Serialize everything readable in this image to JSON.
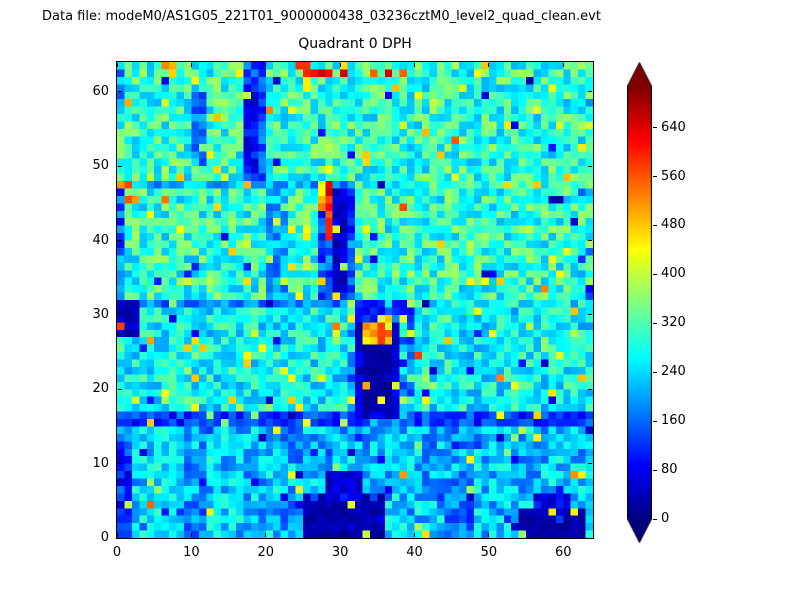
{
  "chart_data": {
    "type": "heatmap",
    "suptitle": "Data file: modeM0/AS1G05_221T01_9000000438_03236cztM0_level2_quad_clean.evt",
    "title": "Quadrant 0 DPH",
    "grid_size": 64,
    "xlim": [
      0,
      64
    ],
    "ylim": [
      0,
      64
    ],
    "x_ticks": [
      0,
      10,
      20,
      30,
      40,
      50,
      60
    ],
    "y_ticks": [
      0,
      10,
      20,
      30,
      40,
      50,
      60
    ],
    "colormap": "jet",
    "value_range": [
      0,
      708
    ],
    "colorbar": {
      "ticks": [
        0,
        80,
        160,
        240,
        320,
        400,
        480,
        560,
        640
      ],
      "extend": "both"
    },
    "generation": {
      "seed": 20,
      "base": {
        "mean": 295,
        "spread": 85
      },
      "regions": [
        {
          "x": [
            0,
            64
          ],
          "y": [
            0,
            16
          ],
          "mean": 225,
          "spread": 75
        },
        {
          "x": [
            3,
            9
          ],
          "y": [
            0,
            15
          ],
          "mean": 255,
          "spread": 55,
          "prob": 0.65
        },
        {
          "x": [
            9,
            12
          ],
          "y": [
            0,
            15
          ],
          "mean": 170,
          "spread": 50,
          "prob": 0.7
        },
        {
          "x": [
            12,
            17
          ],
          "y": [
            0,
            15
          ],
          "mean": 255,
          "spread": 55,
          "prob": 0.6
        },
        {
          "x": [
            22,
            25
          ],
          "y": [
            0,
            15
          ],
          "mean": 180,
          "spread": 55,
          "prob": 0.6
        },
        {
          "x": [
            36,
            41
          ],
          "y": [
            0,
            15
          ],
          "mean": 250,
          "spread": 55,
          "prob": 0.6
        },
        {
          "x": [
            43,
            47
          ],
          "y": [
            0,
            15
          ],
          "mean": 175,
          "spread": 55,
          "prob": 0.6
        },
        {
          "x": [
            47,
            48
          ],
          "y": [
            0,
            16
          ],
          "mean": 160,
          "spread": 55
        },
        {
          "x": [
            48,
            54
          ],
          "y": [
            0,
            15
          ],
          "mean": 245,
          "spread": 55,
          "prob": 0.6
        },
        {
          "x": [
            0,
            64
          ],
          "y": [
            16,
            32
          ],
          "mean": 265,
          "spread": 75
        },
        {
          "x": [
            0,
            64
          ],
          "y": [
            15,
            17
          ],
          "mean": 125,
          "spread": 55
        },
        {
          "x": [
            0,
            34
          ],
          "y": [
            31,
            32
          ],
          "mean": 175,
          "spread": 60
        },
        {
          "x": [
            0,
            28
          ],
          "y": [
            47,
            48
          ],
          "mean": 205,
          "spread": 60
        },
        {
          "x": [
            0,
            2
          ],
          "y": [
            0,
            13
          ],
          "mean": 120,
          "spread": 70
        },
        {
          "x": [
            0,
            3
          ],
          "y": [
            27,
            32
          ],
          "mean": 40,
          "spread": 30
        },
        {
          "x": [
            0,
            1
          ],
          "y": [
            32,
            48
          ],
          "mean": 160,
          "spread": 80
        },
        {
          "x": [
            17,
            20
          ],
          "y": [
            48,
            64
          ],
          "mean": 150,
          "spread": 60
        },
        {
          "x": [
            17,
            19
          ],
          "y": [
            50,
            61
          ],
          "mean": 95,
          "spread": 45
        },
        {
          "x": [
            10,
            12
          ],
          "y": [
            50,
            60
          ],
          "mean": 175,
          "spread": 55,
          "prob": 0.8
        },
        {
          "x": [
            20,
            23
          ],
          "y": [
            32,
            47
          ],
          "mean": 205,
          "spread": 65,
          "prob": 0.85
        },
        {
          "x": [
            27,
            32
          ],
          "y": [
            32,
            48
          ],
          "mean": 150,
          "spread": 70
        },
        {
          "x": [
            29,
            31
          ],
          "y": [
            33,
            47
          ],
          "mean": 55,
          "spread": 35
        },
        {
          "x": [
            28,
            29
          ],
          "y": [
            40,
            48
          ],
          "mean": 600,
          "spread": 55
        },
        {
          "x": [
            27,
            28
          ],
          "y": [
            44,
            48
          ],
          "mean": 480,
          "spread": 60
        },
        {
          "x": [
            31,
            40
          ],
          "y": [
            15,
            32
          ],
          "mean": 170,
          "spread": 85,
          "prob": 0.8
        },
        {
          "x": [
            32,
            38
          ],
          "y": [
            16,
            29
          ],
          "mean": 55,
          "spread": 40
        },
        {
          "x": [
            33,
            37
          ],
          "y": [
            18,
            27
          ],
          "mean": 22,
          "spread": 12
        },
        {
          "x": [
            33,
            37
          ],
          "y": [
            26,
            30
          ],
          "mean": 500,
          "spread": 90
        },
        {
          "x": [
            33,
            35
          ],
          "y": [
            29,
            32
          ],
          "mean": 90,
          "spread": 50
        },
        {
          "x": [
            41,
            43
          ],
          "y": [
            6,
            16
          ],
          "mean": 185,
          "spread": 60,
          "prob": 0.7
        },
        {
          "x": [
            25,
            36
          ],
          "y": [
            0,
            6
          ],
          "mean": 30,
          "spread": 18
        },
        {
          "x": [
            28,
            33
          ],
          "y": [
            5,
            9
          ],
          "mean": 60,
          "spread": 35
        },
        {
          "x": [
            54,
            63
          ],
          "y": [
            0,
            4
          ],
          "mean": 30,
          "spread": 18
        },
        {
          "x": [
            56,
            61
          ],
          "y": [
            3,
            6
          ],
          "mean": 80,
          "spread": 45
        }
      ],
      "speckles": [
        {
          "x": [
            0,
            64
          ],
          "y": [
            16,
            64
          ],
          "count": 150,
          "mean": 420,
          "spread": 70
        },
        {
          "x": [
            0,
            64
          ],
          "y": [
            16,
            64
          ],
          "count": 45,
          "mean": 70,
          "spread": 45
        },
        {
          "x": [
            0,
            64
          ],
          "y": [
            0,
            16
          ],
          "count": 35,
          "mean": 90,
          "spread": 55
        },
        {
          "x": [
            0,
            64
          ],
          "y": [
            0,
            16
          ],
          "count": 25,
          "mean": 400,
          "spread": 60
        },
        {
          "x": [
            0,
            64
          ],
          "y": [
            0,
            64
          ],
          "count": 22,
          "mean": 520,
          "spread": 60
        },
        {
          "x": [
            24,
            31
          ],
          "y": [
            62,
            64
          ],
          "count": 9,
          "mean": 615,
          "spread": 50
        },
        {
          "x": [
            4,
            8
          ],
          "y": [
            62,
            64
          ],
          "count": 3,
          "mean": 500,
          "spread": 50
        },
        {
          "x": [
            0,
            2
          ],
          "y": [
            44,
            48
          ],
          "count": 3,
          "mean": 560,
          "spread": 50
        },
        {
          "x": [
            0,
            2
          ],
          "y": [
            56,
            60
          ],
          "count": 2,
          "mean": 530,
          "spread": 40
        },
        {
          "x": [
            16,
            19
          ],
          "y": [
            46,
            48
          ],
          "count": 2,
          "mean": 510,
          "spread": 40
        },
        {
          "x": [
            62,
            64
          ],
          "y": [
            16,
            64
          ],
          "count": 10,
          "mean": 170,
          "spread": 90
        },
        {
          "x": [
            32,
            40
          ],
          "y": [
            60,
            64
          ],
          "count": 3,
          "mean": 600,
          "spread": 50
        },
        {
          "x": [
            0,
            3
          ],
          "y": [
            57,
            64
          ],
          "count": 4,
          "mean": 120,
          "spread": 80
        }
      ]
    }
  }
}
